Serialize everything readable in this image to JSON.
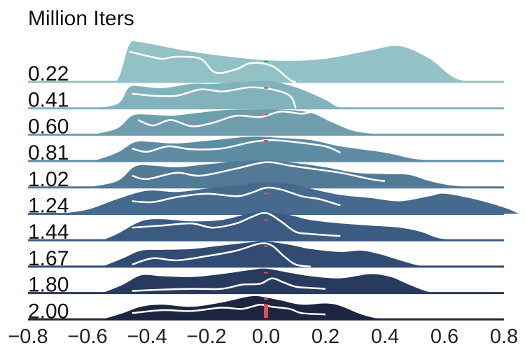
{
  "chart_data": {
    "type": "ridgeline",
    "title": "Million Iters",
    "xlim": [
      -0.8,
      0.8
    ],
    "x_ticks": [
      "−0.8",
      "−0.6",
      "−0.4",
      "−0.2",
      "0.0",
      "0.2",
      "0.4",
      "0.6",
      "0.8"
    ],
    "x_tick_values": [
      -0.8,
      -0.6,
      -0.4,
      -0.2,
      0.0,
      0.2,
      0.4,
      0.6,
      0.8
    ],
    "marker_value": 0.0,
    "grid": false,
    "series": [
      {
        "label": "0.22",
        "color": "#93c2c6",
        "density": [
          [
            -0.56,
            0
          ],
          [
            -0.5,
            0.05
          ],
          [
            -0.46,
            0.88
          ],
          [
            -0.43,
            0.95
          ],
          [
            -0.35,
            0.85
          ],
          [
            -0.25,
            0.72
          ],
          [
            -0.1,
            0.58
          ],
          [
            0.05,
            0.5
          ],
          [
            0.2,
            0.55
          ],
          [
            0.35,
            0.75
          ],
          [
            0.45,
            0.85
          ],
          [
            0.55,
            0.55
          ],
          [
            0.65,
            0.05
          ],
          [
            0.8,
            0
          ]
        ],
        "curve": [
          [
            -0.46,
            0.72
          ],
          [
            -0.4,
            0.62
          ],
          [
            -0.35,
            0.55
          ],
          [
            -0.3,
            0.6
          ],
          [
            -0.22,
            0.55
          ],
          [
            -0.17,
            0.22
          ],
          [
            -0.1,
            0.3
          ],
          [
            -0.05,
            0.45
          ],
          [
            0.02,
            0.38
          ],
          [
            0.08,
            0.05
          ],
          [
            0.1,
            0
          ]
        ]
      },
      {
        "label": "0.41",
        "color": "#82b3bc",
        "density": [
          [
            -0.6,
            0
          ],
          [
            -0.5,
            0.1
          ],
          [
            -0.46,
            0.5
          ],
          [
            -0.42,
            0.52
          ],
          [
            -0.35,
            0.48
          ],
          [
            -0.25,
            0.58
          ],
          [
            -0.18,
            0.58
          ],
          [
            -0.1,
            0.62
          ],
          [
            0.0,
            0.65
          ],
          [
            0.05,
            0.6
          ],
          [
            0.12,
            0.45
          ],
          [
            0.2,
            0.2
          ],
          [
            0.25,
            0.02
          ],
          [
            0.35,
            0
          ]
        ],
        "curve": [
          [
            -0.45,
            0.35
          ],
          [
            -0.38,
            0.3
          ],
          [
            -0.3,
            0.3
          ],
          [
            -0.22,
            0.45
          ],
          [
            -0.15,
            0.4
          ],
          [
            -0.1,
            0.45
          ],
          [
            -0.05,
            0.5
          ],
          [
            0.02,
            0.45
          ],
          [
            0.08,
            0.3
          ],
          [
            0.1,
            0
          ]
        ]
      },
      {
        "label": "0.60",
        "color": "#6f9fae",
        "density": [
          [
            -0.58,
            0
          ],
          [
            -0.5,
            0.15
          ],
          [
            -0.45,
            0.45
          ],
          [
            -0.4,
            0.48
          ],
          [
            -0.32,
            0.45
          ],
          [
            -0.25,
            0.5
          ],
          [
            -0.15,
            0.58
          ],
          [
            -0.05,
            0.6
          ],
          [
            0.05,
            0.6
          ],
          [
            0.15,
            0.52
          ],
          [
            0.22,
            0.3
          ],
          [
            0.3,
            0.08
          ],
          [
            0.4,
            0
          ]
        ],
        "curve": [
          [
            -0.43,
            0.35
          ],
          [
            -0.38,
            0.22
          ],
          [
            -0.32,
            0.35
          ],
          [
            -0.25,
            0.2
          ],
          [
            -0.18,
            0.28
          ],
          [
            -0.1,
            0.45
          ],
          [
            -0.02,
            0.42
          ],
          [
            0.05,
            0.55
          ],
          [
            0.12,
            0.5
          ],
          [
            0.18,
            0.55
          ],
          [
            0.25,
            0.3
          ]
        ]
      },
      {
        "label": "0.81",
        "color": "#5e8da3",
        "density": [
          [
            -0.58,
            0
          ],
          [
            -0.5,
            0.2
          ],
          [
            -0.44,
            0.45
          ],
          [
            -0.38,
            0.45
          ],
          [
            -0.3,
            0.42
          ],
          [
            -0.2,
            0.48
          ],
          [
            -0.05,
            0.58
          ],
          [
            0.05,
            0.55
          ],
          [
            0.15,
            0.5
          ],
          [
            0.25,
            0.35
          ],
          [
            0.4,
            0.2
          ],
          [
            0.5,
            0.05
          ],
          [
            0.6,
            0
          ]
        ],
        "curve": [
          [
            -0.45,
            0.3
          ],
          [
            -0.4,
            0.22
          ],
          [
            -0.33,
            0.35
          ],
          [
            -0.25,
            0.28
          ],
          [
            -0.15,
            0.3
          ],
          [
            -0.05,
            0.45
          ],
          [
            0.02,
            0.5
          ],
          [
            0.1,
            0.45
          ],
          [
            0.2,
            0.35
          ],
          [
            0.25,
            0.2
          ]
        ]
      },
      {
        "label": "1.02",
        "color": "#527a97",
        "density": [
          [
            -0.6,
            0
          ],
          [
            -0.5,
            0.15
          ],
          [
            -0.44,
            0.5
          ],
          [
            -0.38,
            0.52
          ],
          [
            -0.3,
            0.48
          ],
          [
            -0.2,
            0.55
          ],
          [
            -0.1,
            0.62
          ],
          [
            0.0,
            0.65
          ],
          [
            0.1,
            0.58
          ],
          [
            0.2,
            0.48
          ],
          [
            0.3,
            0.35
          ],
          [
            0.4,
            0.32
          ],
          [
            0.48,
            0.3
          ],
          [
            0.55,
            0.15
          ],
          [
            0.62,
            0.05
          ],
          [
            0.7,
            0
          ]
        ],
        "curve": [
          [
            -0.45,
            0.28
          ],
          [
            -0.4,
            0.2
          ],
          [
            -0.3,
            0.35
          ],
          [
            -0.22,
            0.28
          ],
          [
            -0.1,
            0.45
          ],
          [
            0.0,
            0.6
          ],
          [
            0.08,
            0.52
          ],
          [
            0.15,
            0.45
          ],
          [
            0.25,
            0.35
          ],
          [
            0.35,
            0.2
          ],
          [
            0.4,
            0.15
          ]
        ]
      },
      {
        "label": "1.24",
        "color": "#456a8d",
        "density": [
          [
            -0.7,
            0
          ],
          [
            -0.6,
            0.1
          ],
          [
            -0.5,
            0.35
          ],
          [
            -0.4,
            0.55
          ],
          [
            -0.3,
            0.52
          ],
          [
            -0.2,
            0.6
          ],
          [
            -0.1,
            0.68
          ],
          [
            0.0,
            0.75
          ],
          [
            0.08,
            0.72
          ],
          [
            0.15,
            0.6
          ],
          [
            0.25,
            0.45
          ],
          [
            0.35,
            0.38
          ],
          [
            0.45,
            0.3
          ],
          [
            0.55,
            0.42
          ],
          [
            0.6,
            0.48
          ],
          [
            0.7,
            0.35
          ],
          [
            0.8,
            0.15
          ],
          [
            0.85,
            0
          ]
        ],
        "curve": [
          [
            -0.45,
            0.3
          ],
          [
            -0.38,
            0.28
          ],
          [
            -0.3,
            0.4
          ],
          [
            -0.2,
            0.48
          ],
          [
            -0.1,
            0.42
          ],
          [
            -0.05,
            0.5
          ],
          [
            0.0,
            0.62
          ],
          [
            0.05,
            0.58
          ],
          [
            0.12,
            0.42
          ],
          [
            0.18,
            0.35
          ],
          [
            0.25,
            0.2
          ]
        ]
      },
      {
        "label": "1.44",
        "color": "#3b5b82",
        "density": [
          [
            -0.55,
            0
          ],
          [
            -0.5,
            0.15
          ],
          [
            -0.42,
            0.45
          ],
          [
            -0.35,
            0.5
          ],
          [
            -0.25,
            0.45
          ],
          [
            -0.15,
            0.48
          ],
          [
            -0.05,
            0.65
          ],
          [
            0.0,
            0.68
          ],
          [
            0.08,
            0.6
          ],
          [
            0.15,
            0.48
          ],
          [
            0.25,
            0.4
          ],
          [
            0.35,
            0.35
          ],
          [
            0.45,
            0.3
          ],
          [
            0.52,
            0.2
          ],
          [
            0.58,
            0.05
          ],
          [
            0.65,
            0
          ]
        ],
        "curve": [
          [
            -0.45,
            0.3
          ],
          [
            -0.35,
            0.35
          ],
          [
            -0.25,
            0.4
          ],
          [
            -0.18,
            0.3
          ],
          [
            -0.1,
            0.4
          ],
          [
            -0.05,
            0.55
          ],
          [
            0.0,
            0.65
          ],
          [
            0.05,
            0.45
          ],
          [
            0.1,
            0.2
          ],
          [
            0.15,
            0.15
          ],
          [
            0.25,
            0.1
          ]
        ]
      },
      {
        "label": "1.67",
        "color": "#314b73",
        "density": [
          [
            -0.55,
            0
          ],
          [
            -0.48,
            0.2
          ],
          [
            -0.42,
            0.38
          ],
          [
            -0.35,
            0.4
          ],
          [
            -0.25,
            0.42
          ],
          [
            -0.15,
            0.5
          ],
          [
            -0.05,
            0.58
          ],
          [
            0.0,
            0.6
          ],
          [
            0.08,
            0.52
          ],
          [
            0.15,
            0.42
          ],
          [
            0.25,
            0.35
          ],
          [
            0.32,
            0.38
          ],
          [
            0.38,
            0.3
          ],
          [
            0.45,
            0.15
          ],
          [
            0.52,
            0.02
          ],
          [
            0.6,
            0
          ]
        ],
        "curve": [
          [
            -0.45,
            0.05
          ],
          [
            -0.38,
            0.2
          ],
          [
            -0.3,
            0.15
          ],
          [
            -0.2,
            0.25
          ],
          [
            -0.1,
            0.38
          ],
          [
            -0.02,
            0.55
          ],
          [
            0.02,
            0.5
          ],
          [
            0.06,
            0.25
          ],
          [
            0.1,
            0.05
          ],
          [
            0.15,
            0.0
          ]
        ]
      },
      {
        "label": "1.80",
        "color": "#283a5d",
        "density": [
          [
            -0.55,
            0
          ],
          [
            -0.48,
            0.2
          ],
          [
            -0.42,
            0.42
          ],
          [
            -0.35,
            0.4
          ],
          [
            -0.25,
            0.38
          ],
          [
            -0.15,
            0.45
          ],
          [
            -0.05,
            0.55
          ],
          [
            0.0,
            0.58
          ],
          [
            0.08,
            0.48
          ],
          [
            0.15,
            0.4
          ],
          [
            0.25,
            0.35
          ],
          [
            0.35,
            0.45
          ],
          [
            0.42,
            0.38
          ],
          [
            0.48,
            0.2
          ],
          [
            0.55,
            0.02
          ],
          [
            0.6,
            0
          ]
        ],
        "curve": [
          [
            -0.45,
            0.05
          ],
          [
            -0.35,
            0.08
          ],
          [
            -0.25,
            0.1
          ],
          [
            -0.15,
            0.1
          ],
          [
            -0.08,
            0.2
          ],
          [
            -0.02,
            0.22
          ],
          [
            0.02,
            0.35
          ],
          [
            0.06,
            0.25
          ],
          [
            0.1,
            0.15
          ],
          [
            0.15,
            0.12
          ],
          [
            0.2,
            0.1
          ]
        ]
      },
      {
        "label": "2.00",
        "color": "#1e2540",
        "density": [
          [
            -0.55,
            0
          ],
          [
            -0.48,
            0.15
          ],
          [
            -0.42,
            0.3
          ],
          [
            -0.35,
            0.35
          ],
          [
            -0.25,
            0.3
          ],
          [
            -0.15,
            0.4
          ],
          [
            -0.05,
            0.55
          ],
          [
            0.0,
            0.52
          ],
          [
            0.05,
            0.45
          ],
          [
            0.12,
            0.35
          ],
          [
            0.2,
            0.38
          ],
          [
            0.25,
            0.32
          ],
          [
            0.32,
            0.12
          ],
          [
            0.38,
            0.02
          ],
          [
            0.45,
            0
          ]
        ],
        "curve": [
          [
            -0.45,
            0.15
          ],
          [
            -0.35,
            0.22
          ],
          [
            -0.25,
            0.2
          ],
          [
            -0.15,
            0.28
          ],
          [
            -0.08,
            0.25
          ],
          [
            -0.02,
            0.35
          ],
          [
            0.02,
            0.3
          ],
          [
            0.08,
            0.25
          ],
          [
            0.12,
            0.15
          ],
          [
            0.2,
            0.12
          ]
        ]
      }
    ]
  }
}
